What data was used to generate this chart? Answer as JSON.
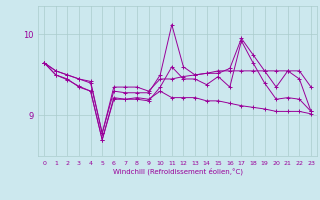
{
  "x": [
    0,
    1,
    2,
    3,
    4,
    5,
    6,
    7,
    8,
    9,
    10,
    11,
    12,
    13,
    14,
    15,
    16,
    17,
    18,
    19,
    20,
    21,
    22,
    23
  ],
  "line1": [
    9.65,
    9.55,
    9.5,
    9.45,
    9.4,
    8.78,
    9.35,
    9.35,
    9.35,
    9.3,
    9.45,
    9.45,
    9.48,
    9.5,
    9.52,
    9.55,
    9.55,
    9.55,
    9.55,
    9.55,
    9.55,
    9.55,
    9.55,
    9.35
  ],
  "line2": [
    9.65,
    9.55,
    9.5,
    9.45,
    9.42,
    8.78,
    9.3,
    9.28,
    9.28,
    9.28,
    9.5,
    10.12,
    9.6,
    9.5,
    9.52,
    9.52,
    9.58,
    9.95,
    9.75,
    9.55,
    9.35,
    9.55,
    9.45,
    9.05
  ],
  "line3": [
    9.65,
    9.5,
    9.45,
    9.35,
    9.3,
    8.7,
    9.2,
    9.2,
    9.2,
    9.18,
    9.35,
    9.6,
    9.45,
    9.45,
    9.38,
    9.48,
    9.35,
    9.92,
    9.65,
    9.4,
    9.2,
    9.22,
    9.2,
    9.05
  ],
  "line4": [
    9.65,
    9.5,
    9.44,
    9.36,
    9.3,
    8.7,
    9.22,
    9.2,
    9.22,
    9.2,
    9.3,
    9.22,
    9.22,
    9.22,
    9.18,
    9.18,
    9.15,
    9.12,
    9.1,
    9.08,
    9.05,
    9.05,
    9.05,
    9.02
  ],
  "color": "#990099",
  "bg_color": "#cce8ee",
  "grid_color": "#aacccc",
  "xlabel": "Windchill (Refroidissement éolien,°C)",
  "yticks": [
    9,
    10
  ],
  "ylim": [
    8.5,
    10.35
  ],
  "xlim": [
    -0.5,
    23.5
  ]
}
